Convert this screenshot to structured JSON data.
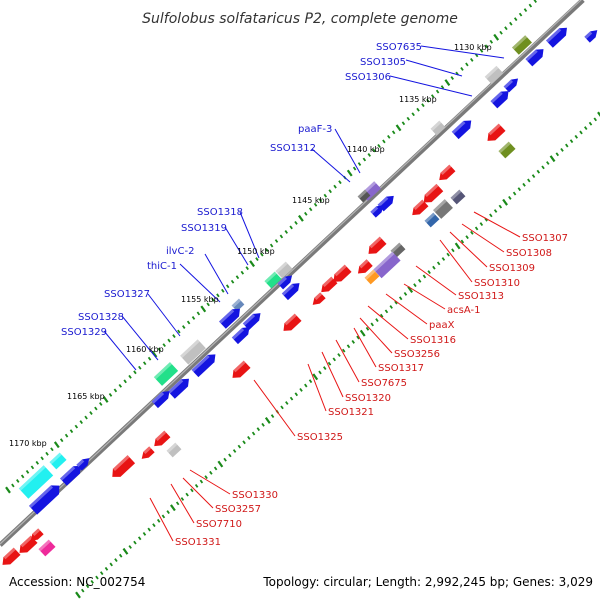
{
  "title": "Sulfolobus solfataricus P2, complete genome",
  "footer": {
    "accession": "Accession: NC_002754",
    "topology": "Topology: circular; Length: 2,992,245 bp; Genes: 3,029"
  },
  "scale_labels": [
    "1130 kbp",
    "1135 kbp",
    "1140 kbp",
    "1145 kbp",
    "1150 kbp",
    "1155 kbp",
    "1160 kbp",
    "1165 kbp",
    "1170 kbp"
  ],
  "forward_labels": [
    "SSO7635",
    "SSO1305",
    "SSO1306",
    "paaF-3",
    "SSO1312",
    "SSO1318",
    "SSO1319",
    "ilvC-2",
    "thiC-1",
    "SSO1327",
    "SSO1328",
    "SSO1329"
  ],
  "reverse_labels": [
    "SSO1307",
    "SSO1308",
    "SSO1309",
    "SSO1310",
    "SSO1313",
    "acsA-1",
    "paaX",
    "SSO1316",
    "SSO3256",
    "SSO1317",
    "SSO7675",
    "SSO1320",
    "SSO1321",
    "SSO1325",
    "SSO1330",
    "SSO3257",
    "SSO7710",
    "SSO1331"
  ],
  "colors": {
    "forward": "#1414e0",
    "reverse": "#e81414",
    "backbone": "#808080",
    "tick": "#1a8a1a",
    "gray_gene": "#c0c0c0",
    "olive_gene": "#6f8f20",
    "green_gene": "#22e08a",
    "cyan_gene": "#22f0f0",
    "purple_gene": "#8866cc",
    "orange_gene": "#ff9922",
    "pink_gene": "#ee2a9a"
  }
}
